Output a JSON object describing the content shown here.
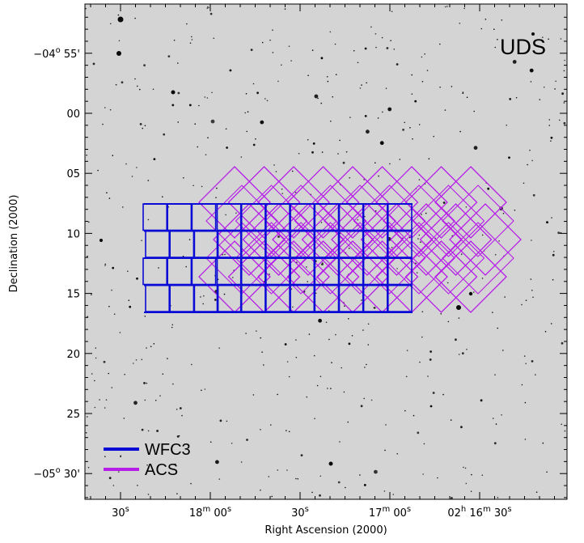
{
  "figure": {
    "field_name": "UDS",
    "x_axis_title": "Right Ascension (2000)",
    "y_axis_title": "Declination (2000)",
    "x_ticks": [
      {
        "label": "30",
        "sup": "s",
        "ra_sec": 90
      },
      {
        "label": "18",
        "sup": "m",
        "label2": " 00",
        "sup2": "s",
        "ra_sec": 60
      },
      {
        "label": "30",
        "sup": "s",
        "ra_sec": 30
      },
      {
        "label": "17",
        "sup": "m",
        "label2": " 00",
        "sup2": "s",
        "ra_sec": 0
      },
      {
        "label": "02",
        "sup": "h",
        "label2": " 16",
        "sup2": "m",
        "label3": " 30",
        "sup3": "s",
        "ra_sec": -30
      }
    ],
    "y_ticks": [
      {
        "label": "−04",
        "sup": "o",
        "label2": " 55'",
        "dec_min": -5
      },
      {
        "label": "00",
        "dec_min": 0
      },
      {
        "label": "05",
        "dec_min": 5
      },
      {
        "label": "10",
        "dec_min": 10
      },
      {
        "label": "15",
        "dec_min": 15
      },
      {
        "label": "20",
        "dec_min": 20
      },
      {
        "label": "25",
        "dec_min": 25
      },
      {
        "label": "−05",
        "sup": "o",
        "label2": " 30'",
        "dec_min": 30
      }
    ],
    "legend": [
      {
        "name": "WFC3",
        "color": "#0b0bd6"
      },
      {
        "name": "ACS",
        "color": "#b61ee8"
      }
    ],
    "colors": {
      "sky_background": "#d4d4d4",
      "wfc3": "#0b0bd6",
      "acs": "#b61ee8"
    }
  }
}
